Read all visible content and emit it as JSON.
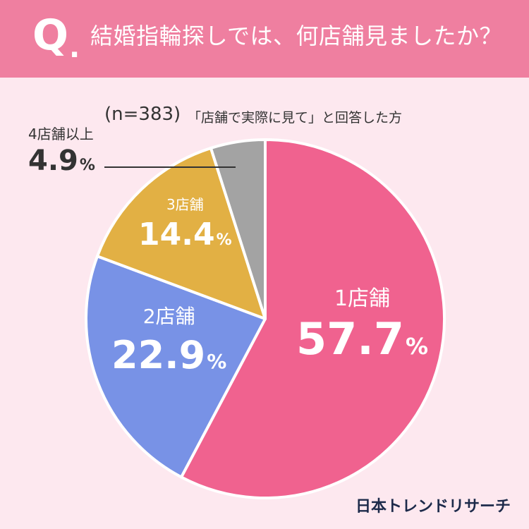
{
  "header": {
    "q_letter": "Q",
    "q_dot": ".",
    "question": "結婚指輪探しでは、何店舗見ましたか？"
  },
  "sample": {
    "n": "(n=383)",
    "note": "「店舗で実際に見て」と回答した方"
  },
  "brand": "日本トレンドリサーチ",
  "chart_data": {
    "type": "pie",
    "start_angle_deg": 0,
    "direction": "clockwise",
    "slices": [
      {
        "label": "1店舗",
        "value": 57.7,
        "display": "57.7",
        "unit": "%",
        "color": "#f0628f"
      },
      {
        "label": "2店舗",
        "value": 22.9,
        "display": "22.9",
        "unit": "%",
        "color": "#7892e6"
      },
      {
        "label": "3店舗",
        "value": 14.4,
        "display": "14.4",
        "unit": "%",
        "color": "#e2b044"
      },
      {
        "label": "4店舗以上",
        "value": 4.9,
        "display": "4.9",
        "unit": "%",
        "color": "#a3a3a3"
      }
    ]
  }
}
